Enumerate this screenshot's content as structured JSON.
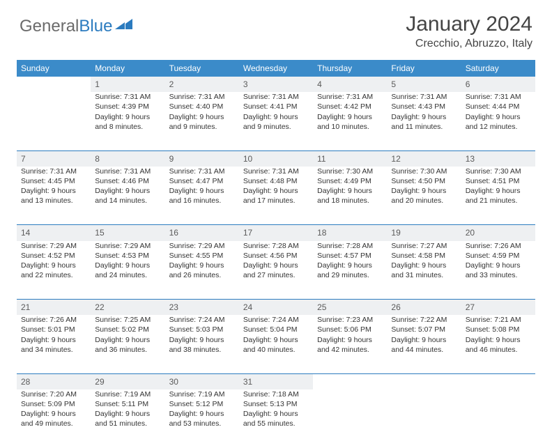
{
  "logo": {
    "text1": "General",
    "text2": "Blue"
  },
  "title": "January 2024",
  "location": "Crecchio, Abruzzo, Italy",
  "colors": {
    "header_bg": "#3b8bc9",
    "header_text": "#ffffff",
    "daynum_bg": "#eef0f2",
    "border": "#2b7bbf",
    "logo_gray": "#6b6b6b",
    "logo_blue": "#2b7bbf"
  },
  "day_names": [
    "Sunday",
    "Monday",
    "Tuesday",
    "Wednesday",
    "Thursday",
    "Friday",
    "Saturday"
  ],
  "weeks": [
    [
      null,
      {
        "n": "1",
        "sr": "7:31 AM",
        "ss": "4:39 PM",
        "dl": "9 hours and 8 minutes."
      },
      {
        "n": "2",
        "sr": "7:31 AM",
        "ss": "4:40 PM",
        "dl": "9 hours and 9 minutes."
      },
      {
        "n": "3",
        "sr": "7:31 AM",
        "ss": "4:41 PM",
        "dl": "9 hours and 9 minutes."
      },
      {
        "n": "4",
        "sr": "7:31 AM",
        "ss": "4:42 PM",
        "dl": "9 hours and 10 minutes."
      },
      {
        "n": "5",
        "sr": "7:31 AM",
        "ss": "4:43 PM",
        "dl": "9 hours and 11 minutes."
      },
      {
        "n": "6",
        "sr": "7:31 AM",
        "ss": "4:44 PM",
        "dl": "9 hours and 12 minutes."
      }
    ],
    [
      {
        "n": "7",
        "sr": "7:31 AM",
        "ss": "4:45 PM",
        "dl": "9 hours and 13 minutes."
      },
      {
        "n": "8",
        "sr": "7:31 AM",
        "ss": "4:46 PM",
        "dl": "9 hours and 14 minutes."
      },
      {
        "n": "9",
        "sr": "7:31 AM",
        "ss": "4:47 PM",
        "dl": "9 hours and 16 minutes."
      },
      {
        "n": "10",
        "sr": "7:31 AM",
        "ss": "4:48 PM",
        "dl": "9 hours and 17 minutes."
      },
      {
        "n": "11",
        "sr": "7:30 AM",
        "ss": "4:49 PM",
        "dl": "9 hours and 18 minutes."
      },
      {
        "n": "12",
        "sr": "7:30 AM",
        "ss": "4:50 PM",
        "dl": "9 hours and 20 minutes."
      },
      {
        "n": "13",
        "sr": "7:30 AM",
        "ss": "4:51 PM",
        "dl": "9 hours and 21 minutes."
      }
    ],
    [
      {
        "n": "14",
        "sr": "7:29 AM",
        "ss": "4:52 PM",
        "dl": "9 hours and 22 minutes."
      },
      {
        "n": "15",
        "sr": "7:29 AM",
        "ss": "4:53 PM",
        "dl": "9 hours and 24 minutes."
      },
      {
        "n": "16",
        "sr": "7:29 AM",
        "ss": "4:55 PM",
        "dl": "9 hours and 26 minutes."
      },
      {
        "n": "17",
        "sr": "7:28 AM",
        "ss": "4:56 PM",
        "dl": "9 hours and 27 minutes."
      },
      {
        "n": "18",
        "sr": "7:28 AM",
        "ss": "4:57 PM",
        "dl": "9 hours and 29 minutes."
      },
      {
        "n": "19",
        "sr": "7:27 AM",
        "ss": "4:58 PM",
        "dl": "9 hours and 31 minutes."
      },
      {
        "n": "20",
        "sr": "7:26 AM",
        "ss": "4:59 PM",
        "dl": "9 hours and 33 minutes."
      }
    ],
    [
      {
        "n": "21",
        "sr": "7:26 AM",
        "ss": "5:01 PM",
        "dl": "9 hours and 34 minutes."
      },
      {
        "n": "22",
        "sr": "7:25 AM",
        "ss": "5:02 PM",
        "dl": "9 hours and 36 minutes."
      },
      {
        "n": "23",
        "sr": "7:24 AM",
        "ss": "5:03 PM",
        "dl": "9 hours and 38 minutes."
      },
      {
        "n": "24",
        "sr": "7:24 AM",
        "ss": "5:04 PM",
        "dl": "9 hours and 40 minutes."
      },
      {
        "n": "25",
        "sr": "7:23 AM",
        "ss": "5:06 PM",
        "dl": "9 hours and 42 minutes."
      },
      {
        "n": "26",
        "sr": "7:22 AM",
        "ss": "5:07 PM",
        "dl": "9 hours and 44 minutes."
      },
      {
        "n": "27",
        "sr": "7:21 AM",
        "ss": "5:08 PM",
        "dl": "9 hours and 46 minutes."
      }
    ],
    [
      {
        "n": "28",
        "sr": "7:20 AM",
        "ss": "5:09 PM",
        "dl": "9 hours and 49 minutes."
      },
      {
        "n": "29",
        "sr": "7:19 AM",
        "ss": "5:11 PM",
        "dl": "9 hours and 51 minutes."
      },
      {
        "n": "30",
        "sr": "7:19 AM",
        "ss": "5:12 PM",
        "dl": "9 hours and 53 minutes."
      },
      {
        "n": "31",
        "sr": "7:18 AM",
        "ss": "5:13 PM",
        "dl": "9 hours and 55 minutes."
      },
      null,
      null,
      null
    ]
  ],
  "labels": {
    "sunrise": "Sunrise:",
    "sunset": "Sunset:",
    "daylight": "Daylight:"
  }
}
